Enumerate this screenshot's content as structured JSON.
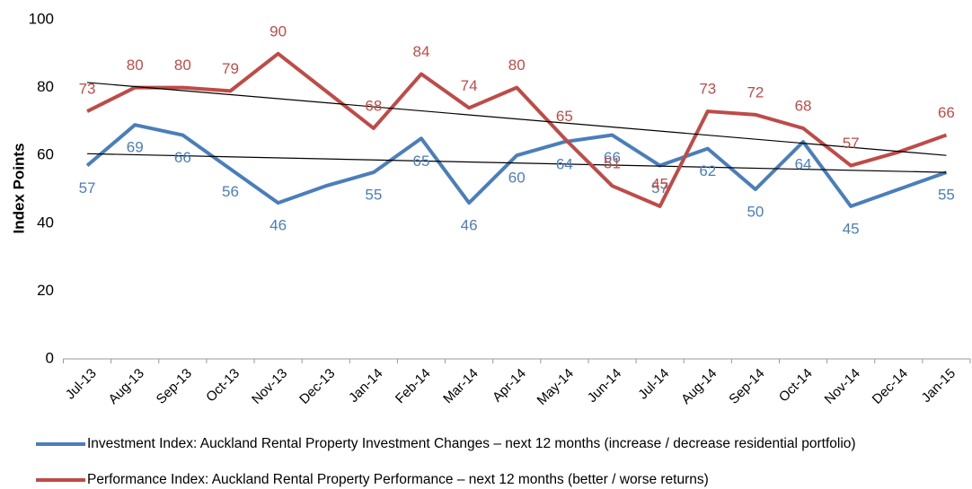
{
  "chart_data": {
    "type": "line",
    "y_label": "Index Points",
    "categories": [
      "Jul-13",
      "Aug-13",
      "Sep-13",
      "Oct-13",
      "Nov-13",
      "Dec-13",
      "Jan-14",
      "Feb-14",
      "Mar-14",
      "Apr-14",
      "May-14",
      "Jun-14",
      "Jul-14",
      "Aug-14",
      "Sep-14",
      "Oct-14",
      "Nov-14",
      "Dec-14",
      "Jan-15"
    ],
    "series": [
      {
        "name": "Investment Index: Auckland Rental Property Investment Changes – next 12 months (increase / decrease residential portfolio)",
        "color": "#4a7ebb",
        "values": [
          57,
          69,
          66,
          56,
          46,
          51,
          55,
          65,
          46,
          60,
          64,
          66,
          57,
          62,
          50,
          64,
          45,
          50,
          55
        ],
        "value_labels": [
          "57",
          "69",
          "66",
          "56",
          "46",
          null,
          "55",
          "65",
          "46",
          "60",
          "64",
          "66",
          "57",
          "62",
          "50",
          "64",
          "45",
          null,
          "55"
        ],
        "trend": {
          "start": 60.5,
          "end": 55
        }
      },
      {
        "name": "Performance Index: Auckland Rental Property Performance – next 12 months (better / worse returns)",
        "color": "#be4b48",
        "values": [
          73,
          80,
          80,
          79,
          90,
          79,
          68,
          84,
          74,
          80,
          65,
          51,
          45,
          73,
          72,
          68,
          57,
          61,
          66
        ],
        "value_labels": [
          "73",
          "80",
          "80",
          "79",
          "90",
          null,
          "68",
          "84",
          "74",
          "80",
          "65",
          "51",
          "45",
          "73",
          "72",
          "68",
          "57",
          null,
          "66"
        ],
        "trend": {
          "start": 81.5,
          "end": 60
        }
      }
    ],
    "trend_color": "#000000",
    "ylim": [
      0,
      100
    ],
    "yticks": [
      0,
      20,
      40,
      60,
      80,
      100
    ],
    "grid": false
  }
}
